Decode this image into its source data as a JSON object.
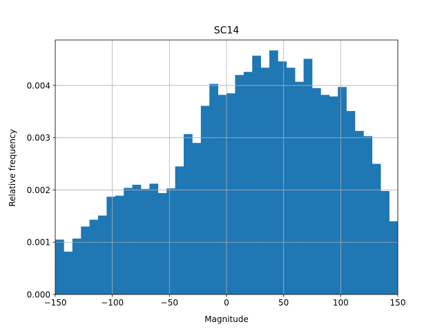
{
  "chart_data": {
    "type": "bar",
    "title": "SC14",
    "xlabel": "Magnitude",
    "ylabel": "Relative frequency",
    "xlim": [
      -150,
      150
    ],
    "ylim": [
      0,
      0.00487
    ],
    "grid": true,
    "bin_width": 7.5,
    "x_ticks": [
      -150,
      -100,
      -50,
      0,
      50,
      100,
      150
    ],
    "x_tick_labels": [
      "−150",
      "−100",
      "−50",
      "0",
      "50",
      "100",
      "150"
    ],
    "y_ticks": [
      0,
      0.001,
      0.002,
      0.003,
      0.004
    ],
    "y_tick_labels": [
      "0.000",
      "0.001",
      "0.002",
      "0.003",
      "0.004"
    ],
    "color": "#1f77b4",
    "bins": [
      [
        -150,
        0.00105
      ],
      [
        -142.5,
        0.00082
      ],
      [
        -135,
        0.00107
      ],
      [
        -127.5,
        0.0013
      ],
      [
        -120,
        0.00143
      ],
      [
        -112.5,
        0.00151
      ],
      [
        -105,
        0.00187
      ],
      [
        -97.5,
        0.00189
      ],
      [
        -90,
        0.00204
      ],
      [
        -82.5,
        0.0021
      ],
      [
        -75,
        0.00202
      ],
      [
        -67.5,
        0.00212
      ],
      [
        -60,
        0.00194
      ],
      [
        -52.5,
        0.00203
      ],
      [
        -45,
        0.00245
      ],
      [
        -37.5,
        0.00307
      ],
      [
        -30,
        0.0029
      ],
      [
        -22.5,
        0.00361
      ],
      [
        -15,
        0.00403
      ],
      [
        -7.5,
        0.00382
      ],
      [
        0,
        0.00385
      ],
      [
        7.5,
        0.0042
      ],
      [
        15,
        0.00426
      ],
      [
        22.5,
        0.00457
      ],
      [
        30,
        0.00434
      ],
      [
        37.5,
        0.00467
      ],
      [
        45,
        0.00446
      ],
      [
        52.5,
        0.00434
      ],
      [
        60,
        0.00407
      ],
      [
        67.5,
        0.00451
      ],
      [
        75,
        0.00395
      ],
      [
        82.5,
        0.00382
      ],
      [
        90,
        0.00379
      ],
      [
        97.5,
        0.00397
      ],
      [
        105,
        0.00351
      ],
      [
        112.5,
        0.00313
      ],
      [
        120,
        0.00303
      ],
      [
        127.5,
        0.0025
      ],
      [
        135,
        0.00198
      ],
      [
        142.5,
        0.0014
      ]
    ]
  }
}
